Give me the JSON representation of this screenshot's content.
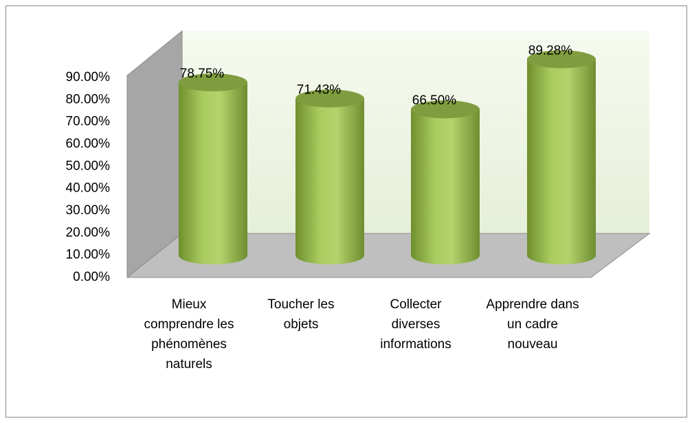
{
  "chart_data": {
    "type": "bar3d",
    "categories": [
      "Mieux comprendre les phénomènes naturels",
      "Toucher les objets",
      "Collecter diverses informations",
      "Apprendre dans un cadre nouveau"
    ],
    "values": [
      78.75,
      71.43,
      66.5,
      89.28
    ],
    "value_labels": [
      "78.75%",
      "71.43%",
      "66.50%",
      "89.28%"
    ],
    "color": "#9bbb59",
    "ylim": [
      0,
      90
    ],
    "yticks": [
      {
        "value": 0,
        "label": "0.00%"
      },
      {
        "value": 10,
        "label": "10.00%"
      },
      {
        "value": 20,
        "label": "20.00%"
      },
      {
        "value": 30,
        "label": "30.00%"
      },
      {
        "value": 40,
        "label": "40.00%"
      },
      {
        "value": 50,
        "label": "50.00%"
      },
      {
        "value": 60,
        "label": "60.00%"
      },
      {
        "value": 70,
        "label": "70.00%"
      },
      {
        "value": 80,
        "label": "80.00%"
      },
      {
        "value": 90,
        "label": "90.00%"
      }
    ]
  }
}
